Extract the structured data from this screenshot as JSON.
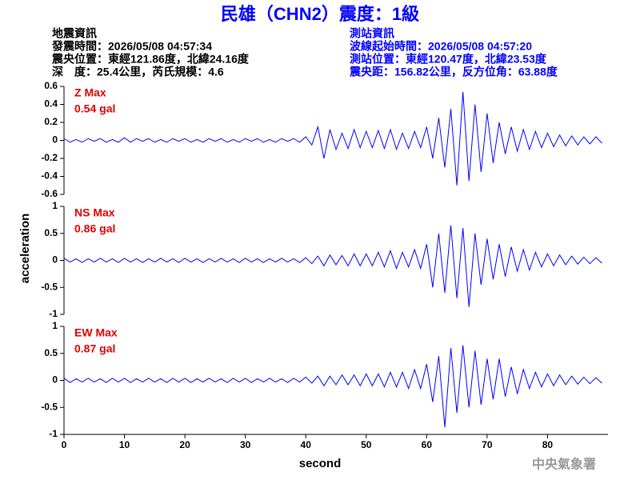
{
  "header": {
    "title": "民雄（CHN2）震度：1級",
    "left": [
      "地震資訊",
      "發震時間：2026/05/08 04:57:34",
      "震央位置：東經121.86度，北緯24.16度",
      "深　度：25.4公里，芮氏規模：4.6"
    ],
    "right": [
      "測站資訊",
      "波線起始時間：2026/05/08 04:57:20",
      "測站位置：東經120.47度，北緯23.53度",
      "震央距：156.82公里，反方位角：63.88度"
    ]
  },
  "footer": "中央氣象署",
  "chart_data": [
    {
      "type": "line",
      "xlim": [
        0,
        90
      ],
      "ylim": [
        -0.6,
        0.6
      ],
      "yticks": [
        -0.6,
        -0.4,
        -0.2,
        0,
        0.2,
        0.4,
        0.6
      ],
      "annotation": "0.54 gal",
      "x": [
        0,
        1,
        2,
        3,
        4,
        5,
        6,
        7,
        8,
        9,
        10,
        11,
        12,
        13,
        14,
        15,
        16,
        17,
        18,
        19,
        20,
        21,
        22,
        23,
        24,
        25,
        26,
        27,
        28,
        29,
        30,
        31,
        32,
        33,
        34,
        35,
        36,
        37,
        38,
        39,
        40,
        41,
        42,
        43,
        44,
        45,
        46,
        47,
        48,
        49,
        50,
        51,
        52,
        53,
        54,
        55,
        56,
        57,
        58,
        59,
        60,
        61,
        62,
        63,
        64,
        65,
        66,
        67,
        68,
        69,
        70,
        71,
        72,
        73,
        74,
        75,
        76,
        77,
        78,
        79,
        80,
        81,
        82,
        83,
        84,
        85,
        86,
        87,
        88,
        89
      ],
      "series": [
        {
          "name": "Z Max",
          "color": "#0000ff",
          "label_color": "#e00000",
          "values": [
            0.02,
            -0.02,
            0.01,
            -0.02,
            0.02,
            -0.01,
            0.02,
            -0.02,
            0.01,
            -0.02,
            0.03,
            -0.02,
            0.02,
            -0.01,
            0.02,
            -0.02,
            0.01,
            -0.02,
            0.02,
            -0.01,
            0.02,
            -0.02,
            0.01,
            -0.02,
            0.02,
            -0.01,
            0.02,
            -0.02,
            0.01,
            -0.02,
            0.02,
            -0.01,
            0.02,
            -0.02,
            0.01,
            -0.02,
            0.02,
            -0.01,
            0.02,
            -0.02,
            0.04,
            -0.05,
            0.15,
            -0.2,
            0.12,
            -0.1,
            0.08,
            -0.09,
            0.12,
            -0.08,
            0.1,
            -0.08,
            0.11,
            -0.09,
            0.12,
            -0.1,
            0.08,
            -0.09,
            0.1,
            -0.08,
            0.15,
            -0.2,
            0.25,
            -0.3,
            0.35,
            -0.5,
            0.54,
            -0.45,
            0.4,
            -0.35,
            0.3,
            -0.25,
            0.2,
            -0.15,
            0.15,
            -0.12,
            0.12,
            -0.1,
            0.1,
            -0.08,
            0.08,
            -0.07,
            0.06,
            -0.06,
            0.05,
            -0.05,
            0.04,
            -0.04,
            0.04,
            -0.03
          ]
        }
      ]
    },
    {
      "type": "line",
      "xlim": [
        0,
        90
      ],
      "ylim": [
        -1,
        1
      ],
      "yticks": [
        -1,
        -0.5,
        0,
        0.5,
        1
      ],
      "annotation": "0.86 gal",
      "ylabel": "acceleration",
      "x": [
        0,
        1,
        2,
        3,
        4,
        5,
        6,
        7,
        8,
        9,
        10,
        11,
        12,
        13,
        14,
        15,
        16,
        17,
        18,
        19,
        20,
        21,
        22,
        23,
        24,
        25,
        26,
        27,
        28,
        29,
        30,
        31,
        32,
        33,
        34,
        35,
        36,
        37,
        38,
        39,
        40,
        41,
        42,
        43,
        44,
        45,
        46,
        47,
        48,
        49,
        50,
        51,
        52,
        53,
        54,
        55,
        56,
        57,
        58,
        59,
        60,
        61,
        62,
        63,
        64,
        65,
        66,
        67,
        68,
        69,
        70,
        71,
        72,
        73,
        74,
        75,
        76,
        77,
        78,
        79,
        80,
        81,
        82,
        83,
        84,
        85,
        86,
        87,
        88,
        89
      ],
      "series": [
        {
          "name": "NS Max",
          "color": "#0000ff",
          "label_color": "#e00000",
          "values": [
            0.04,
            -0.03,
            0.03,
            -0.04,
            0.03,
            -0.03,
            0.04,
            -0.03,
            0.03,
            -0.04,
            0.04,
            -0.03,
            0.03,
            -0.04,
            0.03,
            -0.03,
            0.04,
            -0.03,
            0.03,
            -0.04,
            0.04,
            -0.03,
            0.03,
            -0.04,
            0.03,
            -0.03,
            0.04,
            -0.03,
            0.03,
            -0.04,
            0.04,
            -0.03,
            0.03,
            -0.04,
            0.03,
            -0.03,
            0.04,
            -0.03,
            0.03,
            -0.04,
            0.05,
            -0.06,
            0.08,
            -0.1,
            0.1,
            -0.08,
            0.09,
            -0.1,
            0.12,
            -0.1,
            0.12,
            -0.1,
            0.15,
            -0.12,
            0.18,
            -0.15,
            0.15,
            -0.12,
            0.2,
            -0.15,
            0.3,
            -0.5,
            0.5,
            -0.6,
            0.65,
            -0.7,
            0.6,
            -0.86,
            0.5,
            -0.45,
            0.4,
            -0.35,
            0.3,
            -0.3,
            0.25,
            -0.2,
            0.2,
            -0.18,
            0.15,
            -0.12,
            0.12,
            -0.1,
            0.1,
            -0.08,
            0.08,
            -0.07,
            0.06,
            -0.06,
            0.05,
            -0.05
          ]
        }
      ]
    },
    {
      "type": "line",
      "xlim": [
        0,
        90
      ],
      "ylim": [
        -1,
        1
      ],
      "yticks": [
        -1,
        -0.5,
        0,
        0.5,
        1
      ],
      "xticks": [
        0,
        10,
        20,
        30,
        40,
        50,
        60,
        70,
        80
      ],
      "xlabel": "second",
      "annotation": "0.87 gal",
      "x": [
        0,
        1,
        2,
        3,
        4,
        5,
        6,
        7,
        8,
        9,
        10,
        11,
        12,
        13,
        14,
        15,
        16,
        17,
        18,
        19,
        20,
        21,
        22,
        23,
        24,
        25,
        26,
        27,
        28,
        29,
        30,
        31,
        32,
        33,
        34,
        35,
        36,
        37,
        38,
        39,
        40,
        41,
        42,
        43,
        44,
        45,
        46,
        47,
        48,
        49,
        50,
        51,
        52,
        53,
        54,
        55,
        56,
        57,
        58,
        59,
        60,
        61,
        62,
        63,
        64,
        65,
        66,
        67,
        68,
        69,
        70,
        71,
        72,
        73,
        74,
        75,
        76,
        77,
        78,
        79,
        80,
        81,
        82,
        83,
        84,
        85,
        86,
        87,
        88,
        89
      ],
      "series": [
        {
          "name": "EW Max",
          "color": "#0000ff",
          "label_color": "#e00000",
          "values": [
            0.04,
            -0.04,
            0.03,
            -0.03,
            0.04,
            -0.03,
            0.03,
            -0.04,
            0.04,
            -0.03,
            0.04,
            -0.04,
            0.03,
            -0.03,
            0.04,
            -0.03,
            0.03,
            -0.04,
            0.04,
            -0.03,
            0.04,
            -0.04,
            0.03,
            -0.03,
            0.04,
            -0.03,
            0.03,
            -0.04,
            0.04,
            -0.03,
            0.04,
            -0.04,
            0.03,
            -0.03,
            0.04,
            -0.03,
            0.03,
            -0.04,
            0.04,
            -0.03,
            0.06,
            -0.05,
            0.08,
            -0.1,
            0.08,
            -0.08,
            0.1,
            -0.08,
            0.1,
            -0.1,
            0.12,
            -0.1,
            0.12,
            -0.12,
            0.15,
            -0.12,
            0.15,
            -0.15,
            0.2,
            -0.15,
            0.3,
            -0.4,
            0.45,
            -0.87,
            0.6,
            -0.6,
            0.65,
            -0.5,
            0.55,
            -0.45,
            0.4,
            -0.35,
            0.4,
            -0.3,
            0.25,
            -0.25,
            0.2,
            -0.15,
            0.15,
            -0.12,
            0.12,
            -0.1,
            0.1,
            -0.08,
            0.08,
            -0.07,
            0.06,
            -0.06,
            0.05,
            -0.05
          ]
        }
      ]
    }
  ]
}
